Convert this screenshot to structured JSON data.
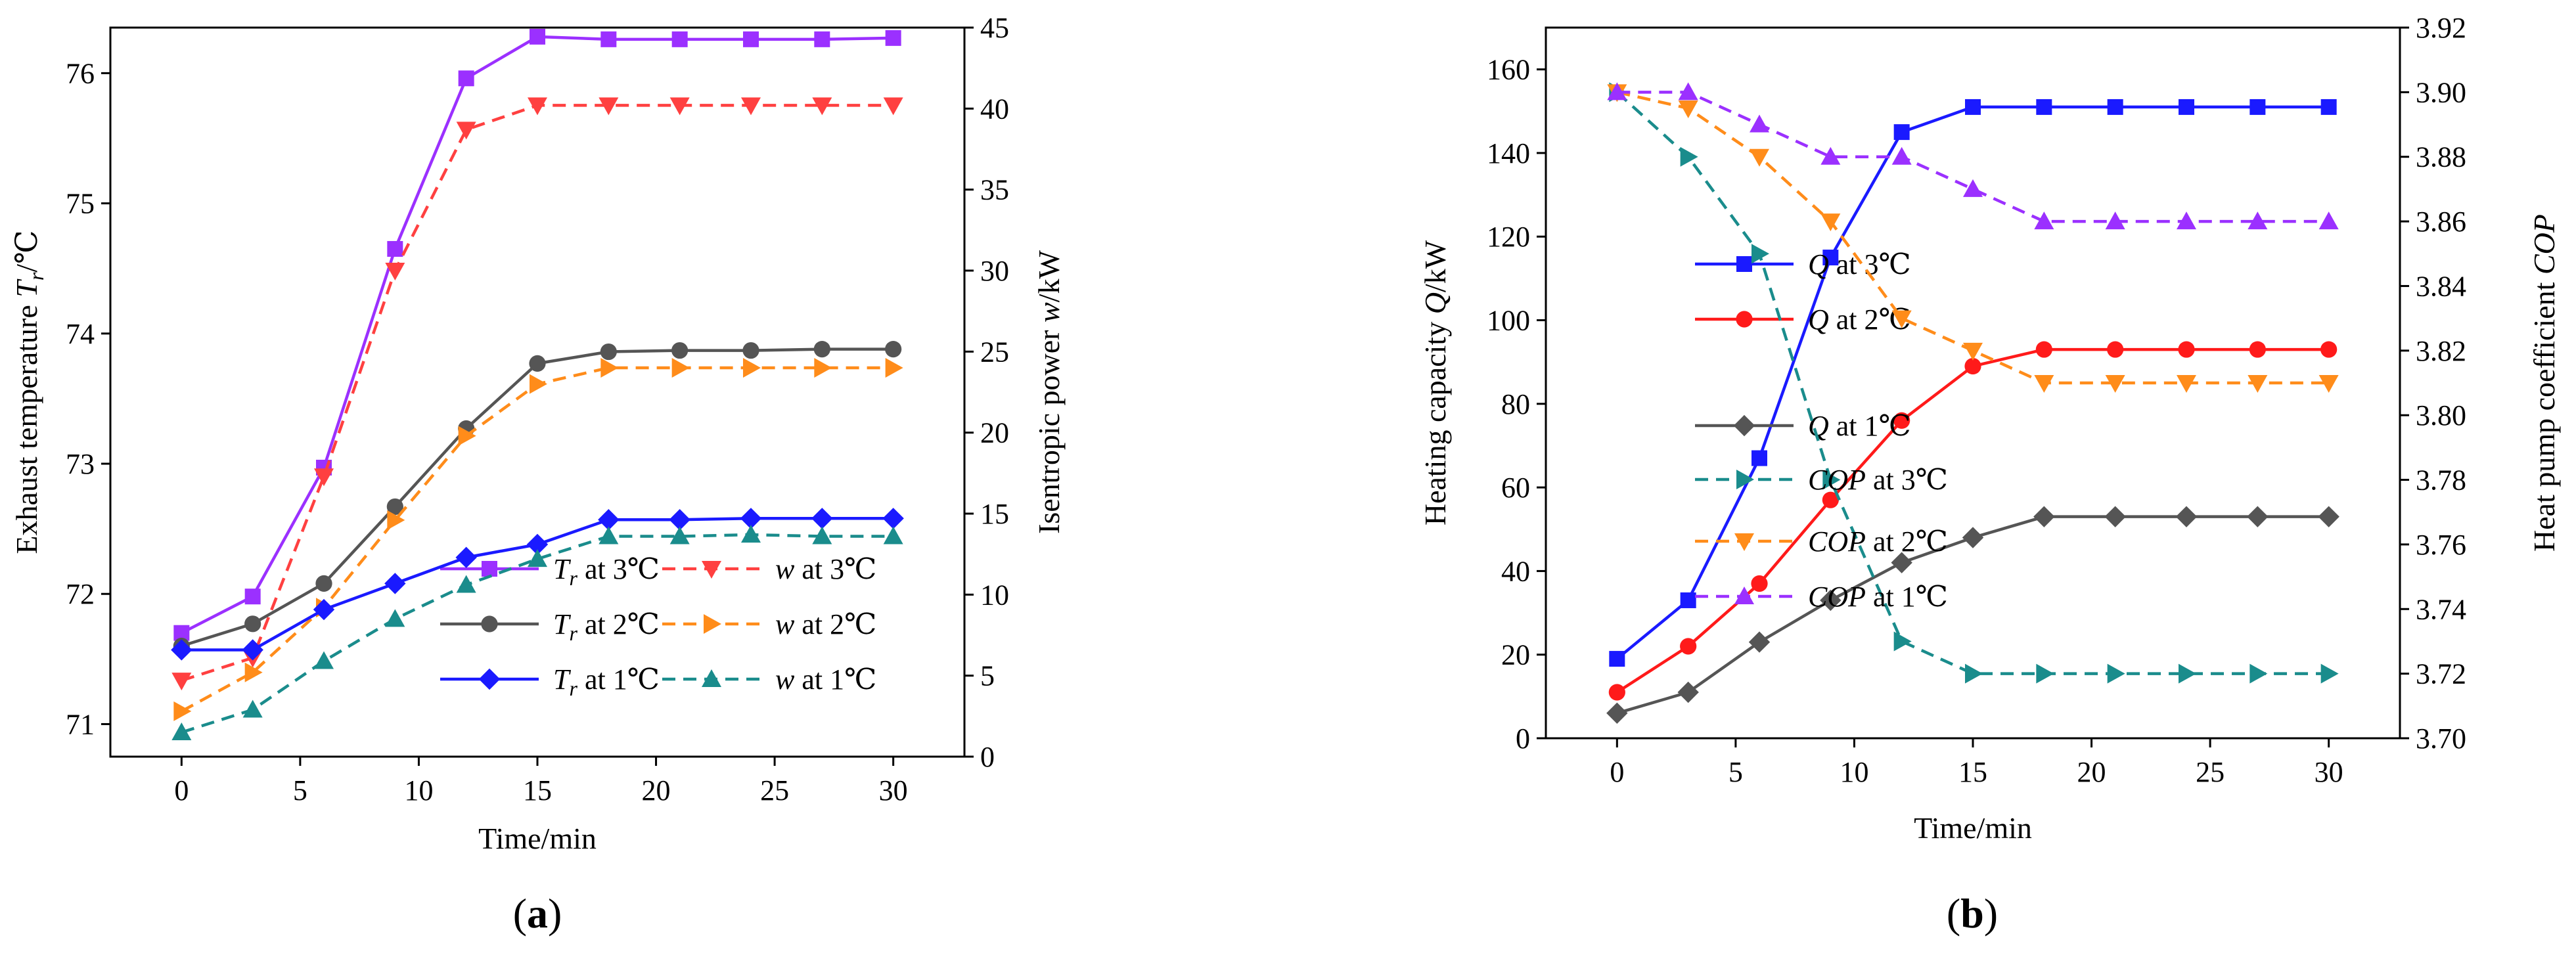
{
  "chart_data": [
    {
      "type": "line",
      "panel": "a",
      "panel_label": {
        "open": "(",
        "letter": "a",
        "close": ")"
      },
      "x": [
        0,
        3,
        6,
        9,
        12,
        15,
        18,
        21,
        24,
        27,
        30
      ],
      "xlabel": "Time/min",
      "xlim": [
        -3,
        33
      ],
      "xticks": [
        0,
        5,
        10,
        15,
        20,
        25,
        30
      ],
      "ylabel": {
        "pre": "Exhaust temperature ",
        "var": "T",
        "sub": "r",
        "post": "/℃"
      },
      "ylim": [
        70.75,
        76.35
      ],
      "yticks": [
        71,
        72,
        73,
        74,
        75,
        76
      ],
      "y2label": {
        "pre": "Isentropic power ",
        "var": "w",
        "post": "/kW"
      },
      "y2lim": [
        0,
        45
      ],
      "y2ticks": [
        0,
        5,
        10,
        15,
        20,
        25,
        30,
        35,
        40,
        45
      ],
      "series": [
        {
          "name": "Tr at 3℃",
          "legend": {
            "var": "T",
            "sub": "r",
            "post": " at 3℃"
          },
          "axis": "left",
          "color": "#9b30ff",
          "dash": "solid",
          "marker": "square",
          "values": [
            71.7,
            71.98,
            72.97,
            74.65,
            75.96,
            76.28,
            76.26,
            76.26,
            76.26,
            76.26,
            76.27
          ]
        },
        {
          "name": "w at 3℃",
          "legend": {
            "var": "w",
            "sub": "",
            "post": " at 3℃"
          },
          "axis": "right",
          "color": "#ff4040",
          "dash": "dashed",
          "marker": "triangle-down",
          "values": [
            4.7,
            6.1,
            17.3,
            30.0,
            38.7,
            40.2,
            40.2,
            40.2,
            40.2,
            40.2,
            40.2
          ]
        },
        {
          "name": "Tr at 2℃",
          "legend": {
            "var": "T",
            "sub": "r",
            "post": " at 2℃"
          },
          "axis": "left",
          "color": "#555555",
          "dash": "solid",
          "marker": "circle",
          "values": [
            71.6,
            71.77,
            72.08,
            72.67,
            73.27,
            73.77,
            73.86,
            73.87,
            73.87,
            73.88,
            73.88
          ]
        },
        {
          "name": "w at 2℃",
          "legend": {
            "var": "w",
            "sub": "",
            "post": " at 2℃"
          },
          "axis": "right",
          "color": "#ff8c1a",
          "dash": "dashed",
          "marker": "triangle-right",
          "values": [
            2.8,
            5.2,
            9.2,
            14.6,
            19.8,
            23.0,
            24.0,
            24.0,
            24.0,
            24.0,
            24.0
          ]
        },
        {
          "name": "Tr at 1℃",
          "legend": {
            "var": "T",
            "sub": "r",
            "post": " at 1℃"
          },
          "axis": "left",
          "color": "#1a1aff",
          "dash": "solid",
          "marker": "diamond",
          "values": [
            71.57,
            71.57,
            71.88,
            72.08,
            72.28,
            72.38,
            72.57,
            72.57,
            72.58,
            72.58,
            72.58
          ]
        },
        {
          "name": "w at 1℃",
          "legend": {
            "var": "w",
            "sub": "",
            "post": " at 1℃"
          },
          "axis": "right",
          "color": "#1a8c8c",
          "dash": "dashed",
          "marker": "triangle-up",
          "values": [
            1.5,
            2.9,
            5.9,
            8.5,
            10.6,
            12.2,
            13.6,
            13.6,
            13.7,
            13.6,
            13.6
          ]
        }
      ]
    },
    {
      "type": "line",
      "panel": "b",
      "panel_label": {
        "open": "(",
        "letter": "b",
        "close": ")"
      },
      "x": [
        0,
        3,
        6,
        9,
        12,
        15,
        18,
        21,
        24,
        27,
        30
      ],
      "xlabel": "Time/min",
      "xlim": [
        -3,
        33
      ],
      "xticks": [
        0,
        5,
        10,
        15,
        20,
        25,
        30
      ],
      "ylabel": {
        "pre": "Heating capacity ",
        "var": "Q",
        "post": "/kW"
      },
      "ylim": [
        0,
        170
      ],
      "yticks": [
        0,
        20,
        40,
        60,
        80,
        100,
        120,
        140,
        160
      ],
      "y2label": {
        "pre": "Heat pump coefficient ",
        "var": "COP",
        "post": ""
      },
      "y2lim": [
        3.7,
        3.92
      ],
      "y2ticks": [
        "3.70",
        "3.72",
        "3.74",
        "3.76",
        "3.78",
        "3.80",
        "3.82",
        "3.84",
        "3.86",
        "3.88",
        "3.90",
        "3.92"
      ],
      "series": [
        {
          "name": "Q at 3℃",
          "legend": {
            "var": "Q",
            "sub": "",
            "post": " at 3℃"
          },
          "axis": "left",
          "color": "#1a1aff",
          "dash": "solid",
          "marker": "square",
          "values": [
            19,
            33,
            67,
            115,
            145,
            151,
            151,
            151,
            151,
            151,
            151
          ]
        },
        {
          "name": "Q at 2℃",
          "legend": {
            "var": "Q",
            "sub": "",
            "post": " at 2℃"
          },
          "axis": "left",
          "color": "#ff1a1a",
          "dash": "solid",
          "marker": "circle",
          "values": [
            11,
            22,
            37,
            57,
            76,
            89,
            93,
            93,
            93,
            93,
            93
          ]
        },
        {
          "name": "Q at 1℃",
          "legend": {
            "var": "Q",
            "sub": "",
            "post": " at 1℃"
          },
          "axis": "left",
          "color": "#555555",
          "dash": "solid",
          "marker": "diamond",
          "values": [
            6,
            11,
            23,
            33,
            42,
            48,
            53,
            53,
            53,
            53,
            53
          ]
        },
        {
          "name": "COP at 3℃",
          "legend": {
            "var": "COP",
            "sub": "",
            "post": " at 3℃"
          },
          "axis": "right",
          "color": "#1a8c8c",
          "dash": "dashed",
          "marker": "triangle-right",
          "values": [
            3.9,
            3.88,
            3.85,
            3.78,
            3.73,
            3.72,
            3.72,
            3.72,
            3.72,
            3.72,
            3.72
          ]
        },
        {
          "name": "COP at 2℃",
          "legend": {
            "var": "COP",
            "sub": "",
            "post": " at 2℃"
          },
          "axis": "right",
          "color": "#ff8c1a",
          "dash": "dashed",
          "marker": "triangle-down",
          "values": [
            3.9,
            3.895,
            3.88,
            3.86,
            3.83,
            3.82,
            3.81,
            3.81,
            3.81,
            3.81,
            3.81
          ]
        },
        {
          "name": "COP at 1℃",
          "legend": {
            "var": "COP",
            "sub": "",
            "post": " at 1℃"
          },
          "axis": "right",
          "color": "#9b30ff",
          "dash": "dashed",
          "marker": "triangle-up",
          "values": [
            3.9,
            3.9,
            3.89,
            3.88,
            3.88,
            3.87,
            3.86,
            3.86,
            3.86,
            3.86,
            3.86
          ]
        }
      ]
    }
  ]
}
